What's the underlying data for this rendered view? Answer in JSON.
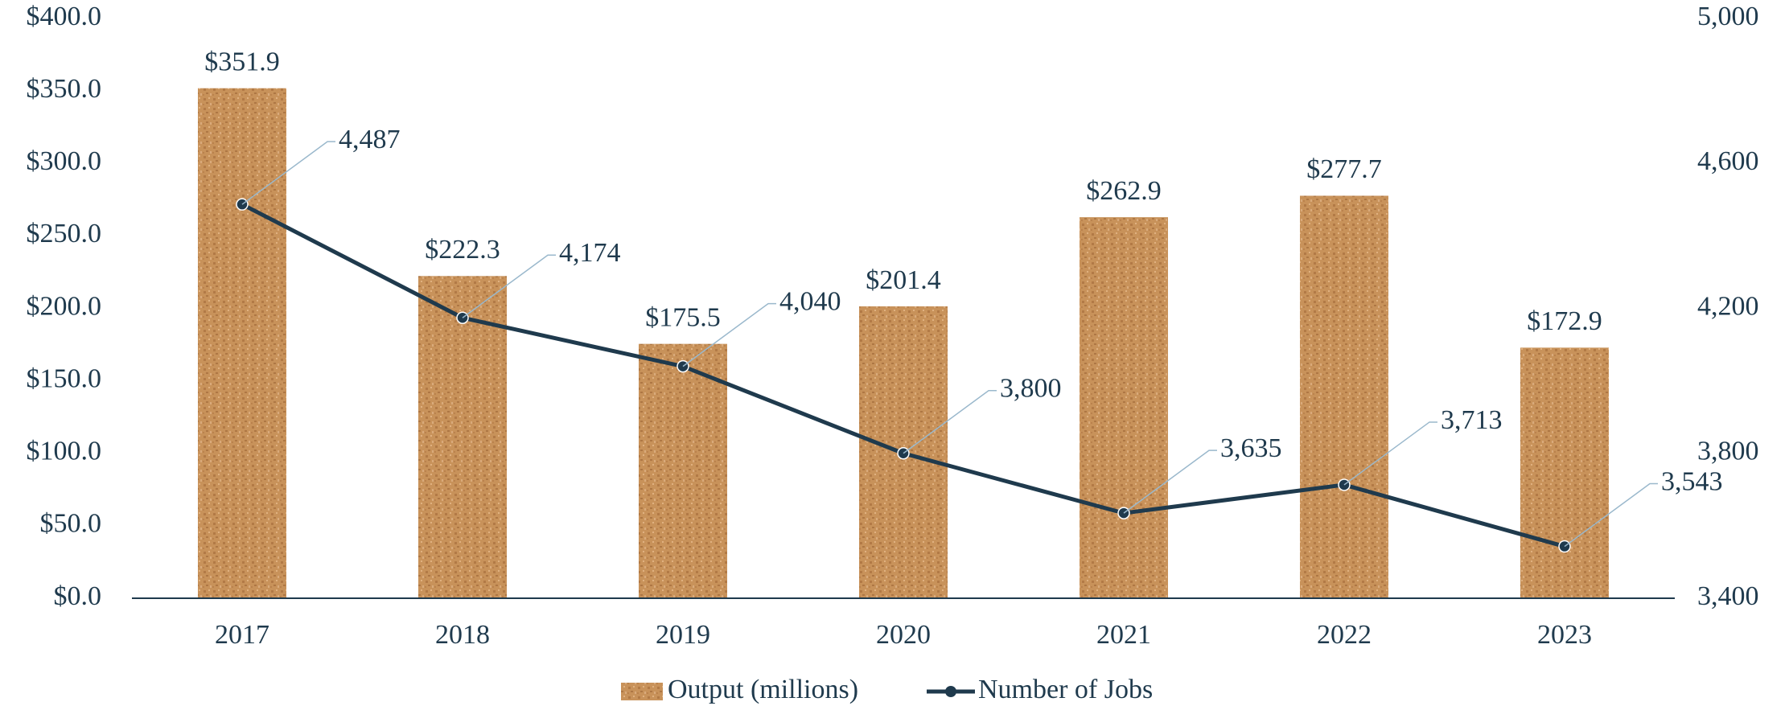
{
  "chart_data": {
    "type": "bar",
    "categories": [
      "2017",
      "2018",
      "2019",
      "2020",
      "2021",
      "2022",
      "2023"
    ],
    "series": [
      {
        "name": "Output (millions)",
        "type": "bar",
        "color": "#c8925a",
        "values": [
          351.9,
          222.3,
          175.5,
          201.4,
          262.9,
          277.7,
          172.9
        ],
        "value_labels": [
          "$351.9",
          "$222.3",
          "$175.5",
          "$201.4",
          "$262.9",
          "$277.7",
          "$172.9"
        ]
      },
      {
        "name": "Number of Jobs",
        "type": "line",
        "axis": "y2",
        "color": "#1f3a4d",
        "values": [
          4487,
          4174,
          4040,
          3800,
          3635,
          3713,
          3543
        ],
        "value_labels": [
          "4,487",
          "4,174",
          "4,040",
          "3,800",
          "3,635",
          "3,713",
          "3,543"
        ]
      }
    ],
    "ylim": [
      0,
      400
    ],
    "yticks": [
      {
        "value": 0,
        "label": "$0.0"
      },
      {
        "value": 50,
        "label": "$50.0"
      },
      {
        "value": 100,
        "label": "$100.0"
      },
      {
        "value": 150,
        "label": "$150.0"
      },
      {
        "value": 200,
        "label": "$200.0"
      },
      {
        "value": 250,
        "label": "$250.0"
      },
      {
        "value": 300,
        "label": "$300.0"
      },
      {
        "value": 350,
        "label": "$350.0"
      },
      {
        "value": 400,
        "label": "$400.0"
      }
    ],
    "y2lim": [
      3400,
      5000
    ],
    "y2ticks": [
      {
        "value": 3400,
        "label": "3,400"
      },
      {
        "value": 3800,
        "label": "3,800"
      },
      {
        "value": 4200,
        "label": "4,200"
      },
      {
        "value": 4600,
        "label": "4,600"
      },
      {
        "value": 5000,
        "label": "5,000"
      }
    ],
    "grid": false,
    "legend": "bottom"
  }
}
